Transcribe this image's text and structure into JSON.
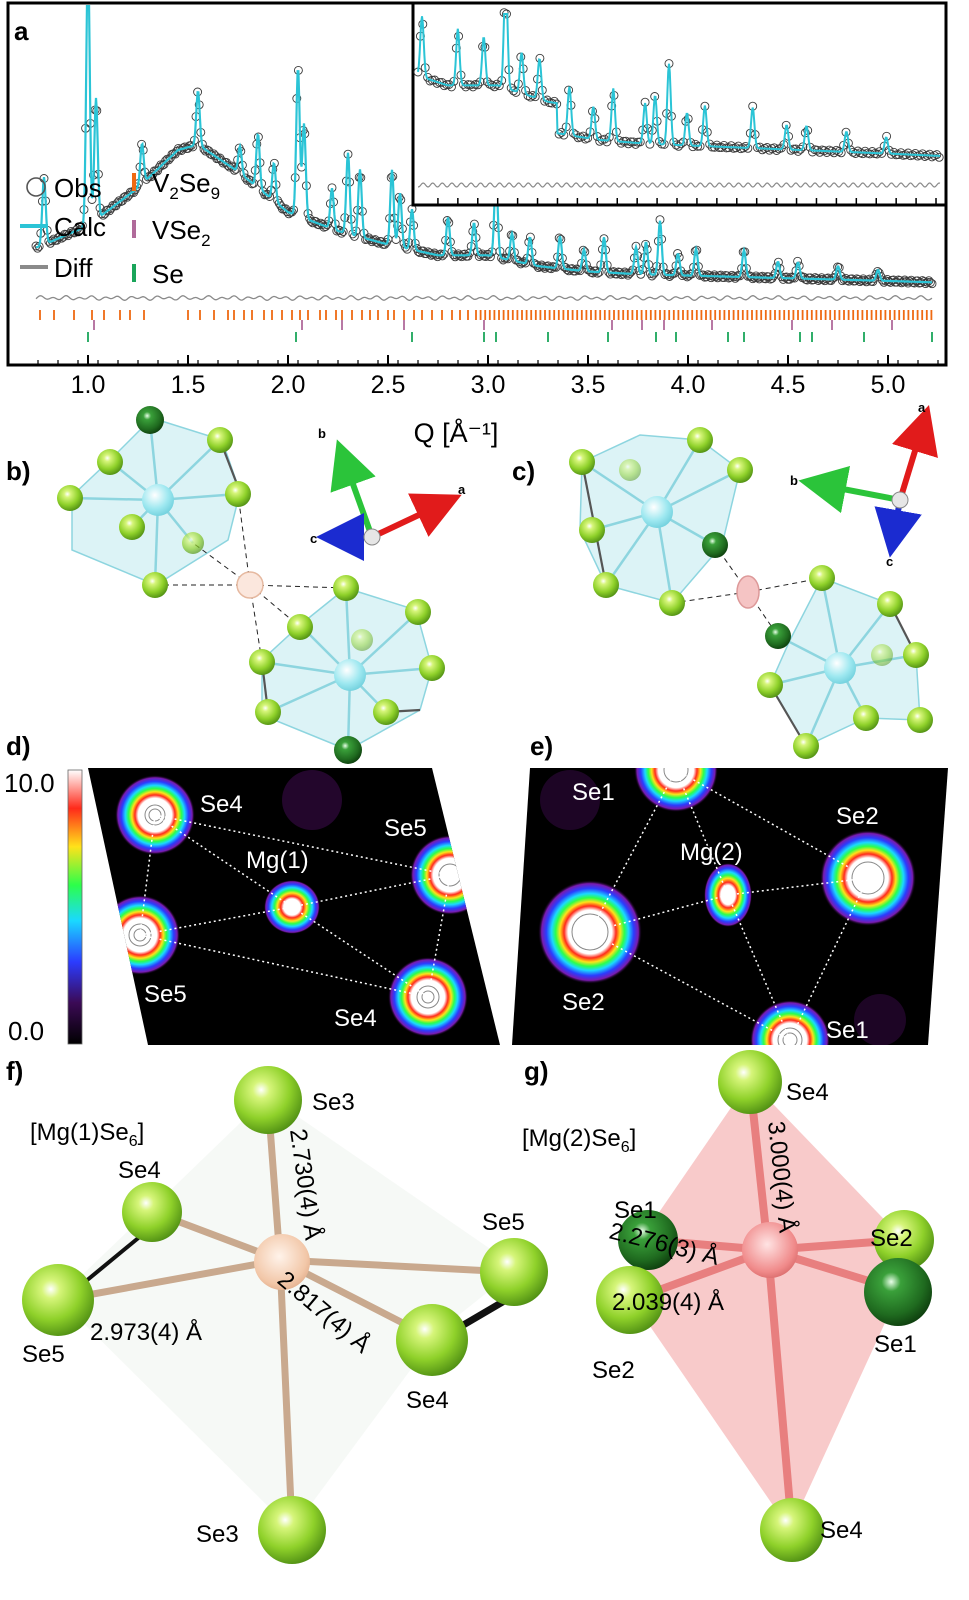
{
  "panels": {
    "a": {
      "letter": "a"
    },
    "b": {
      "letter": "b)"
    },
    "c": {
      "letter": "c)"
    },
    "d": {
      "letter": "d)"
    },
    "e": {
      "letter": "e)"
    },
    "f": {
      "letter": "f)"
    },
    "g": {
      "letter": "g)"
    }
  },
  "chart_data": {
    "type": "scatter",
    "xlabel": "Q [Å⁻¹]",
    "ylabel": "",
    "xlim": [
      0.62,
      5.28
    ],
    "xticks": [
      "1.0",
      "1.5",
      "2.0",
      "2.5",
      "3.0",
      "3.5",
      "4.0",
      "4.5",
      "5.0"
    ],
    "xtick_values": [
      1.0,
      1.5,
      2.0,
      2.5,
      3.0,
      3.5,
      4.0,
      4.5,
      5.0
    ],
    "legend": {
      "placement": "left",
      "entries": [
        {
          "label": "Obs",
          "style": "open-circle",
          "color": "#555555"
        },
        {
          "label": "Calc",
          "style": "line",
          "color": "#2bc4d6"
        },
        {
          "label": "Diff",
          "style": "line",
          "color": "#8a8a8a"
        },
        {
          "label_base": "V",
          "label_sub": "2",
          "label_base2": "Se",
          "label_sub2": "9",
          "style": "tick",
          "color": "#ef6a12"
        },
        {
          "label_base": "VSe",
          "label_sub": "2",
          "style": "tick",
          "color": "#b06a9a"
        },
        {
          "label": "Se",
          "style": "tick",
          "color": "#1aa55a"
        }
      ]
    },
    "series": [
      {
        "name": "Calc",
        "color": "#2bc4d6",
        "background": [
          [
            0.75,
            0.14
          ],
          [
            1.0,
            0.22
          ],
          [
            1.25,
            0.36
          ],
          [
            1.45,
            0.5
          ],
          [
            1.55,
            0.52
          ],
          [
            1.75,
            0.42
          ],
          [
            2.0,
            0.27
          ],
          [
            2.25,
            0.2
          ],
          [
            2.5,
            0.15
          ],
          [
            2.75,
            0.11
          ],
          [
            3.0,
            0.11
          ],
          [
            3.25,
            0.07
          ],
          [
            3.5,
            0.05
          ],
          [
            3.75,
            0.04
          ],
          [
            4.0,
            0.035
          ],
          [
            4.5,
            0.025
          ],
          [
            5.0,
            0.015
          ],
          [
            5.22,
            0.01
          ]
        ],
        "peaks": [
          [
            0.78,
            0.25
          ],
          [
            1.0,
            1.0
          ],
          [
            1.04,
            0.45
          ],
          [
            1.27,
            0.15
          ],
          [
            1.55,
            0.2
          ],
          [
            1.76,
            0.1
          ],
          [
            1.85,
            0.2
          ],
          [
            1.93,
            0.14
          ],
          [
            2.05,
            0.55
          ],
          [
            2.08,
            0.35
          ],
          [
            2.22,
            0.15
          ],
          [
            2.3,
            0.3
          ],
          [
            2.36,
            0.25
          ],
          [
            2.52,
            0.28
          ],
          [
            2.56,
            0.2
          ],
          [
            2.62,
            0.15
          ],
          [
            2.8,
            0.14
          ],
          [
            2.93,
            0.12
          ],
          [
            3.04,
            0.3
          ],
          [
            3.12,
            0.1
          ],
          [
            3.21,
            0.1
          ],
          [
            3.36,
            0.12
          ],
          [
            3.48,
            0.08
          ],
          [
            3.58,
            0.13
          ],
          [
            3.74,
            0.1
          ],
          [
            3.79,
            0.12
          ],
          [
            3.86,
            0.2
          ],
          [
            3.95,
            0.08
          ],
          [
            4.04,
            0.1
          ],
          [
            4.28,
            0.1
          ],
          [
            4.45,
            0.06
          ],
          [
            4.55,
            0.06
          ],
          [
            4.75,
            0.05
          ],
          [
            4.95,
            0.04
          ]
        ]
      }
    ],
    "phase_ticks": {
      "V2Se9": [
        0.76,
        0.83,
        0.93,
        1.02,
        1.08,
        1.16,
        1.21,
        1.28,
        1.5,
        1.56,
        1.63,
        1.7,
        1.73,
        1.78,
        1.82,
        1.88,
        1.92,
        1.97,
        2.02,
        2.06,
        2.1,
        2.16,
        2.19,
        2.24,
        2.27,
        2.32,
        2.37,
        2.41,
        2.45,
        2.5,
        2.53,
        2.58,
        2.63,
        2.67,
        2.72,
        2.77,
        2.82,
        2.86,
        2.9
      ],
      "VSe2": [
        1.03,
        2.07,
        2.27,
        2.58,
        2.98,
        3.62,
        3.77,
        3.88,
        4.12,
        4.52,
        4.72,
        5.02
      ],
      "Se": [
        1.0,
        2.04,
        2.62,
        2.98,
        3.04,
        3.3,
        3.6,
        3.84,
        3.94,
        4.2,
        4.28,
        4.56,
        4.62,
        4.88,
        5.22
      ]
    }
  },
  "inset": {
    "description_hidden": true
  },
  "axes_b": {
    "a": "a",
    "b": "b",
    "c": "c"
  },
  "axes_c": {
    "a": "a",
    "b": "b",
    "c": "c"
  },
  "colorbar": {
    "max": "10.0",
    "min": "0.0"
  },
  "density_d": {
    "labels": {
      "se4_top": "Se4",
      "se5_right": "Se5",
      "mg": "Mg(1)",
      "se5_left": "Se5",
      "se4_bottom": "Se4"
    }
  },
  "density_e": {
    "labels": {
      "se1_top": "Se1",
      "se2_right": "Se2",
      "mg": "Mg(2)",
      "se2_left": "Se2",
      "se1_bottom": "Se1"
    }
  },
  "panel_f": {
    "formula_base": "[Mg(1)Se",
    "formula_sub": "6",
    "formula_end": "]",
    "labels": {
      "se3_top": "Se3",
      "se4_left": "Se4",
      "se5_left": "Se5",
      "se5_right": "Se5",
      "se4_bottom": "Se4",
      "se3_bottom": "Se3"
    },
    "distances": {
      "d1": "2.730(4) Å",
      "d2": "2.973(4) Å",
      "d3": "2.817(4) Å"
    }
  },
  "panel_g": {
    "formula_base": "[Mg(2)Se",
    "formula_sub": "6",
    "formula_end": "]",
    "labels": {
      "se4_top": "Se4",
      "se1_left": "Se1",
      "se2_right": "Se2",
      "se2_left": "Se2",
      "se1_right": "Se1",
      "se4_bottom": "Se4"
    },
    "distances": {
      "d1": "3.000(4) Å",
      "d2": "2.276(3) Å",
      "d3": "2.039(4) Å"
    }
  },
  "colors": {
    "se_light": "#8fd12a",
    "se_dark": "#1f6a1f",
    "mg1": "#f2c7a8",
    "mg2": "#f08a8a",
    "polyhedron": "#bfe9ee",
    "calc": "#2bc4d6",
    "v2se9": "#ef6a12",
    "vse2": "#b06a9a",
    "se_tick": "#1aa55a"
  }
}
